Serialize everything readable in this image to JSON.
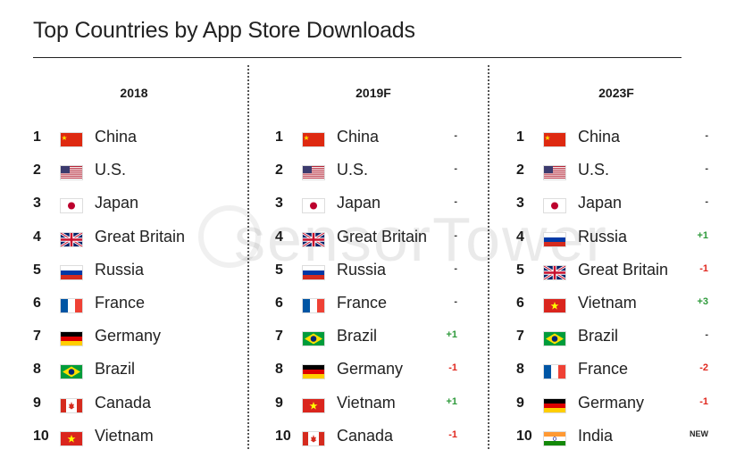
{
  "title": "Top Countries by App Store Downloads",
  "watermark": "sensorTower",
  "flag_colors": {
    "china": "#DE2910",
    "usa_red": "#B22234",
    "usa_blue": "#3C3B6E",
    "japan": "#BC002D",
    "russia_blue": "#0039A6",
    "russia_red": "#D52B1E",
    "france_blue": "#0055A4",
    "france_red": "#EF4135",
    "germany_red": "#DD0000",
    "germany_gold": "#FFCE00",
    "brazil_green": "#009C3B",
    "brazil_yellow": "#FFDF00",
    "brazil_blue": "#002776",
    "canada_red": "#D52B1E",
    "vietnam_red": "#DA251D",
    "vietnam_star": "#FFFF00",
    "india_saffron": "#FF9933",
    "india_green": "#138808",
    "india_blue": "#000080",
    "uk_blue": "#012169",
    "uk_red": "#C8102E"
  },
  "columns": [
    {
      "year": "2018",
      "rows": [
        {
          "rank": "1",
          "country": "China",
          "flag": "china",
          "change": ""
        },
        {
          "rank": "2",
          "country": "U.S.",
          "flag": "usa",
          "change": ""
        },
        {
          "rank": "3",
          "country": "Japan",
          "flag": "japan",
          "change": ""
        },
        {
          "rank": "4",
          "country": "Great Britain",
          "flag": "uk",
          "change": ""
        },
        {
          "rank": "5",
          "country": "Russia",
          "flag": "russia",
          "change": ""
        },
        {
          "rank": "6",
          "country": "France",
          "flag": "france",
          "change": ""
        },
        {
          "rank": "7",
          "country": "Germany",
          "flag": "germany",
          "change": ""
        },
        {
          "rank": "8",
          "country": "Brazil",
          "flag": "brazil",
          "change": ""
        },
        {
          "rank": "9",
          "country": "Canada",
          "flag": "canada",
          "change": ""
        },
        {
          "rank": "10",
          "country": "Vietnam",
          "flag": "vietnam",
          "change": ""
        }
      ]
    },
    {
      "year": "2019F",
      "rows": [
        {
          "rank": "1",
          "country": "China",
          "flag": "china",
          "change": "-"
        },
        {
          "rank": "2",
          "country": "U.S.",
          "flag": "usa",
          "change": "-"
        },
        {
          "rank": "3",
          "country": "Japan",
          "flag": "japan",
          "change": "-"
        },
        {
          "rank": "4",
          "country": "Great Britain",
          "flag": "uk",
          "change": "-"
        },
        {
          "rank": "5",
          "country": "Russia",
          "flag": "russia",
          "change": "-"
        },
        {
          "rank": "6",
          "country": "France",
          "flag": "france",
          "change": "-"
        },
        {
          "rank": "7",
          "country": "Brazil",
          "flag": "brazil",
          "change": "+1"
        },
        {
          "rank": "8",
          "country": "Germany",
          "flag": "germany",
          "change": "-1"
        },
        {
          "rank": "9",
          "country": "Vietnam",
          "flag": "vietnam",
          "change": "+1"
        },
        {
          "rank": "10",
          "country": "Canada",
          "flag": "canada",
          "change": "-1"
        }
      ]
    },
    {
      "year": "2023F",
      "rows": [
        {
          "rank": "1",
          "country": "China",
          "flag": "china",
          "change": "-"
        },
        {
          "rank": "2",
          "country": "U.S.",
          "flag": "usa",
          "change": "-"
        },
        {
          "rank": "3",
          "country": "Japan",
          "flag": "japan",
          "change": "-"
        },
        {
          "rank": "4",
          "country": "Russia",
          "flag": "russia",
          "change": "+1"
        },
        {
          "rank": "5",
          "country": "Great Britain",
          "flag": "uk",
          "change": "-1"
        },
        {
          "rank": "6",
          "country": "Vietnam",
          "flag": "vietnam",
          "change": "+3"
        },
        {
          "rank": "7",
          "country": "Brazil",
          "flag": "brazil",
          "change": "-"
        },
        {
          "rank": "8",
          "country": "France",
          "flag": "france",
          "change": "-2"
        },
        {
          "rank": "9",
          "country": "Germany",
          "flag": "germany",
          "change": "-1"
        },
        {
          "rank": "10",
          "country": "India",
          "flag": "india",
          "change": "NEW"
        }
      ]
    }
  ]
}
